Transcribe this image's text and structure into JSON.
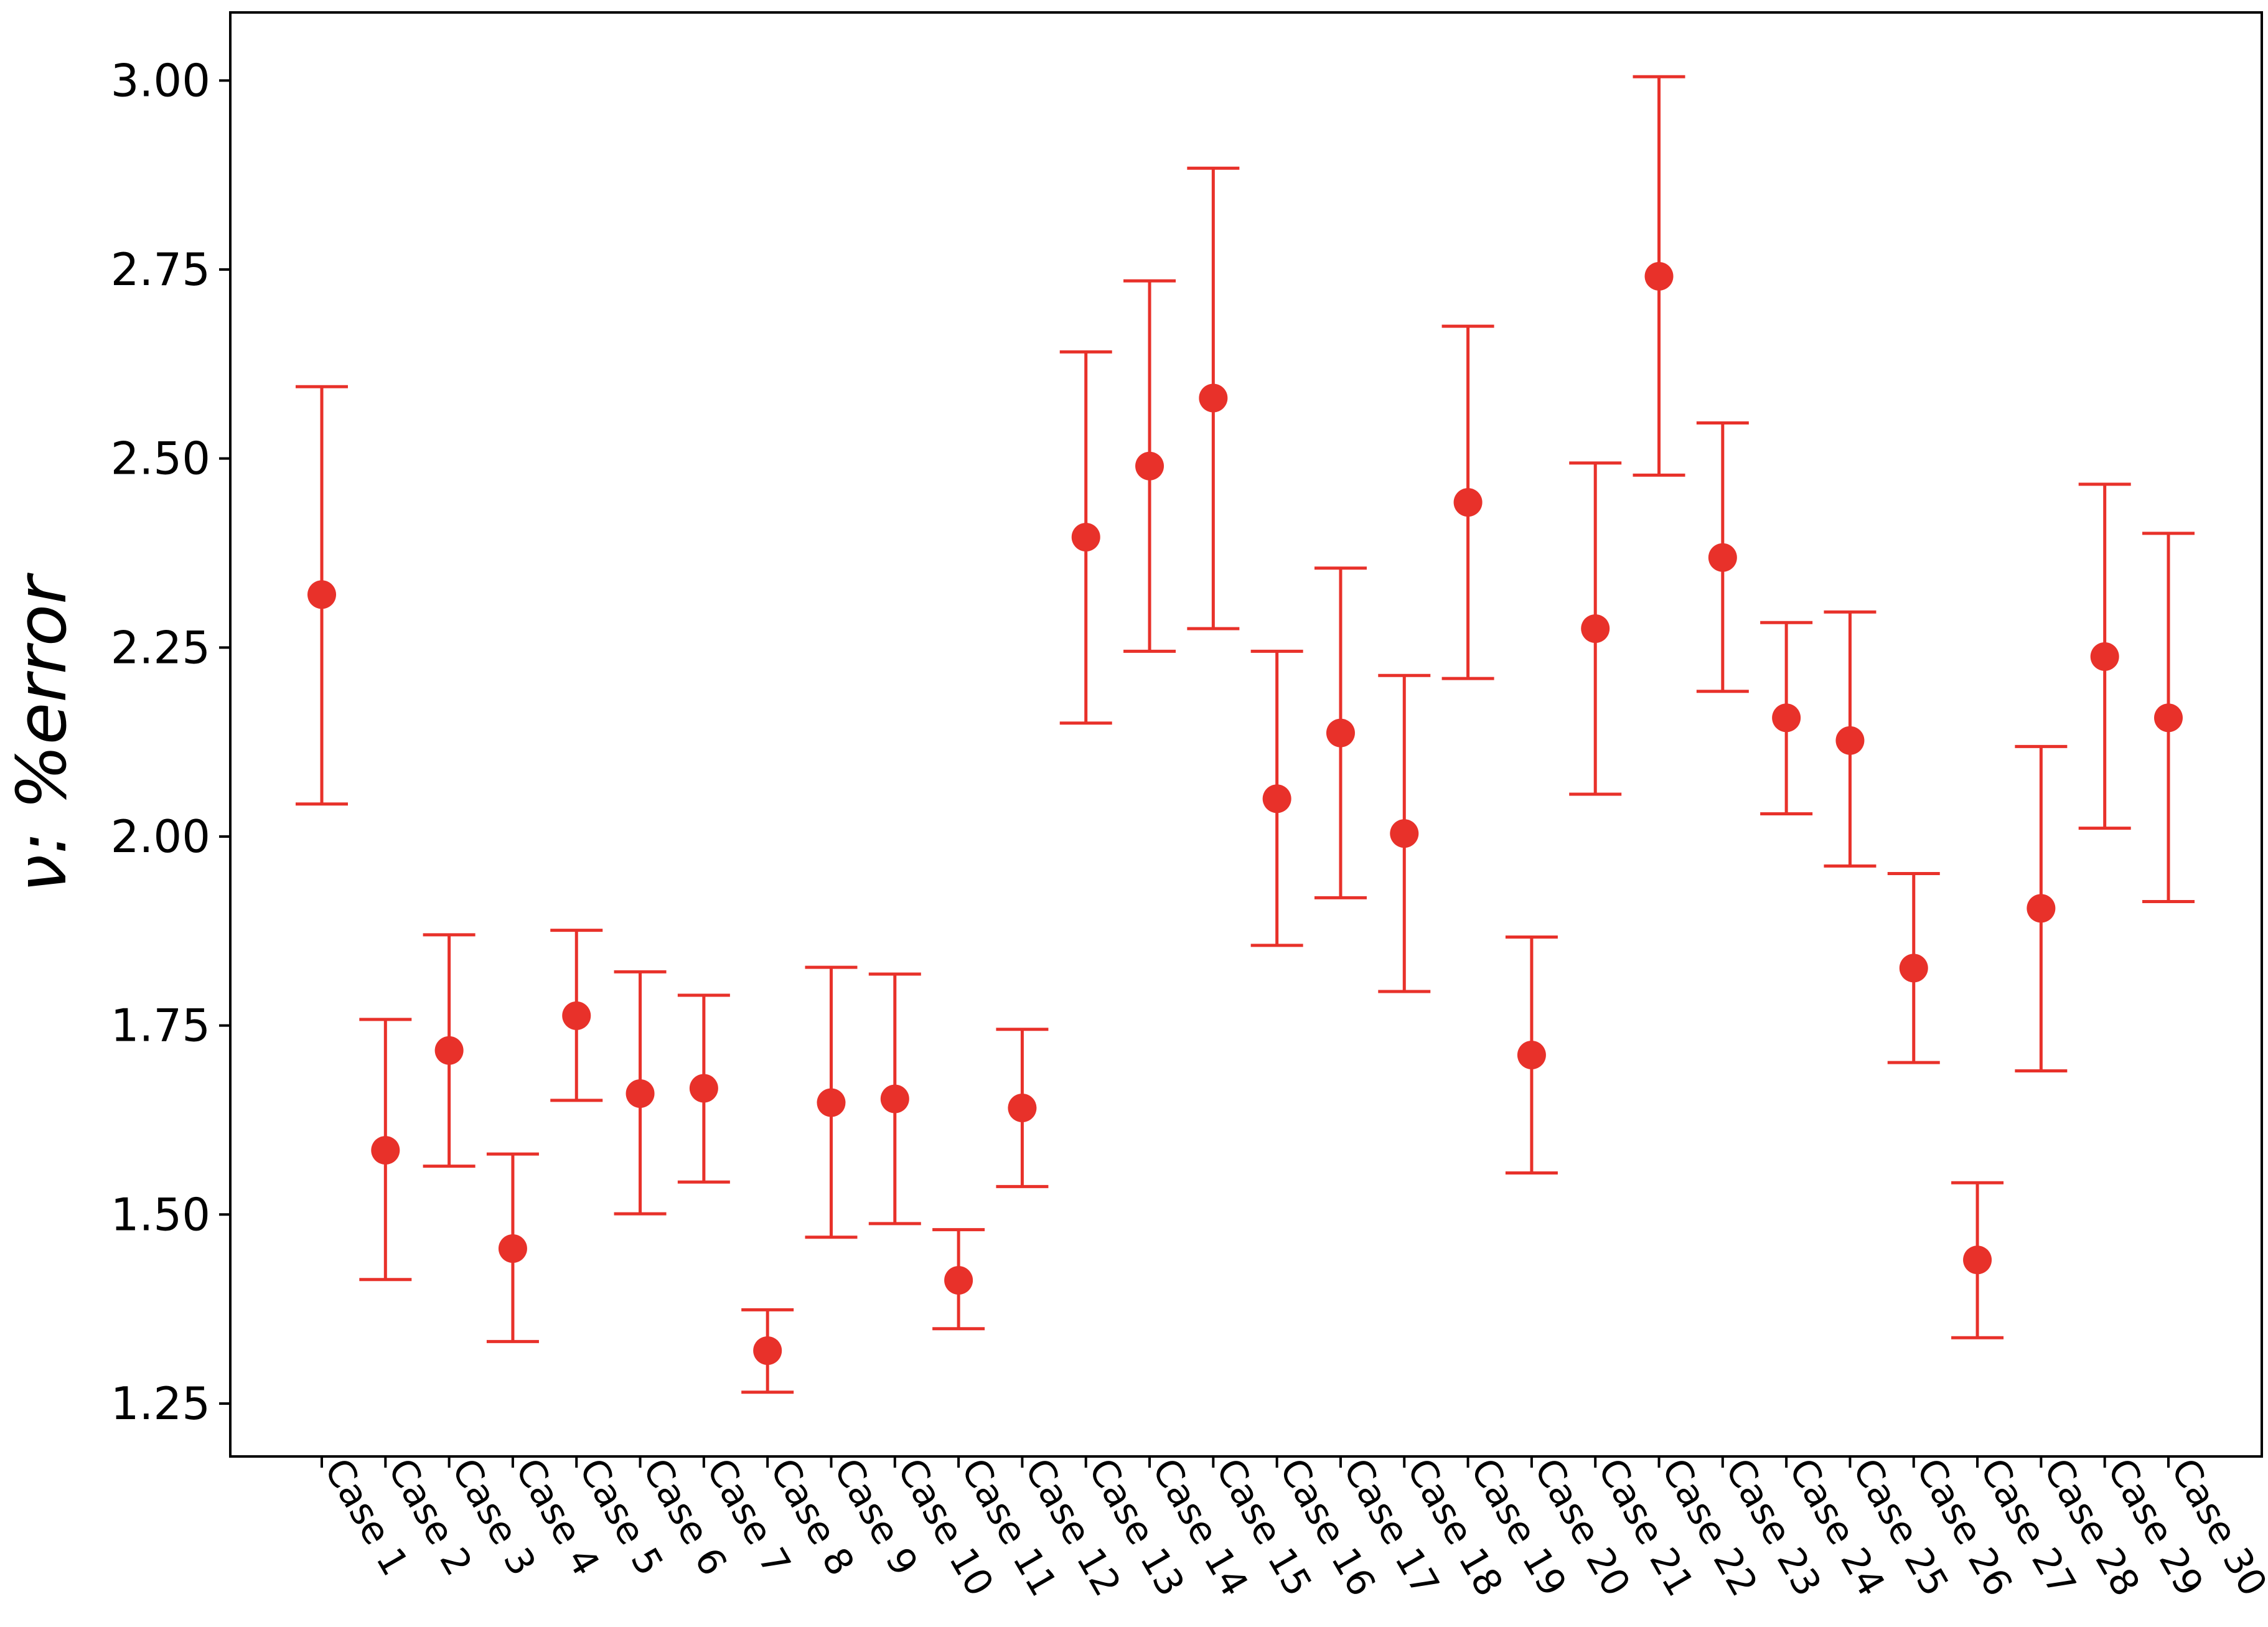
{
  "chart_data": {
    "type": "scatter",
    "title": "",
    "xlabel": "",
    "ylabel": "ν: %error",
    "ylim": [
      1.18,
      3.09
    ],
    "yticks": [
      "1.25",
      "1.50",
      "1.75",
      "2.00",
      "2.25",
      "2.50",
      "2.75",
      "3.00"
    ],
    "ytick_values": [
      1.25,
      1.5,
      1.75,
      2.0,
      2.25,
      2.5,
      2.75,
      3.0
    ],
    "grid": false,
    "marker_color": "#e8312a",
    "error_color": "#e8312a",
    "categories": [
      "Case 1",
      "Case 2",
      "Case 3",
      "Case 4",
      "Case 5",
      "Case 6",
      "Case 7",
      "Case 8",
      "Case 9",
      "Case 10",
      "Case 11",
      "Case 12",
      "Case 13",
      "Case 14",
      "Case 15",
      "Case 16",
      "Case 17",
      "Case 18",
      "Case 19",
      "Case 20",
      "Case 21",
      "Case 22",
      "Case 23",
      "Case 24",
      "Case 25",
      "Case 26",
      "Case 27",
      "Case 28",
      "Case 29",
      "Case 30"
    ],
    "values": [
      2.32,
      1.585,
      1.717,
      1.455,
      1.763,
      1.66,
      1.667,
      1.32,
      1.648,
      1.653,
      1.413,
      1.641,
      2.396,
      2.49,
      2.58,
      2.05,
      2.137,
      2.004,
      2.442,
      1.711,
      2.275,
      2.741,
      2.369,
      2.157,
      2.127,
      1.826,
      1.44,
      1.905,
      2.238,
      2.157
    ],
    "error_low": [
      2.043,
      1.414,
      1.564,
      1.332,
      1.651,
      1.501,
      1.543,
      1.265,
      1.47,
      1.488,
      1.349,
      1.537,
      2.15,
      2.245,
      2.275,
      1.856,
      1.919,
      1.795,
      2.209,
      1.555,
      2.056,
      2.478,
      2.192,
      2.03,
      1.961,
      1.701,
      1.337,
      1.69,
      2.011,
      1.914
    ],
    "error_high": [
      2.595,
      1.758,
      1.87,
      1.58,
      1.876,
      1.821,
      1.79,
      1.374,
      1.827,
      1.818,
      1.48,
      1.745,
      2.641,
      2.735,
      2.884,
      2.245,
      2.355,
      2.213,
      2.675,
      1.867,
      2.494,
      3.005,
      2.547,
      2.283,
      2.297,
      1.951,
      1.542,
      2.119,
      2.466,
      2.401
    ]
  }
}
